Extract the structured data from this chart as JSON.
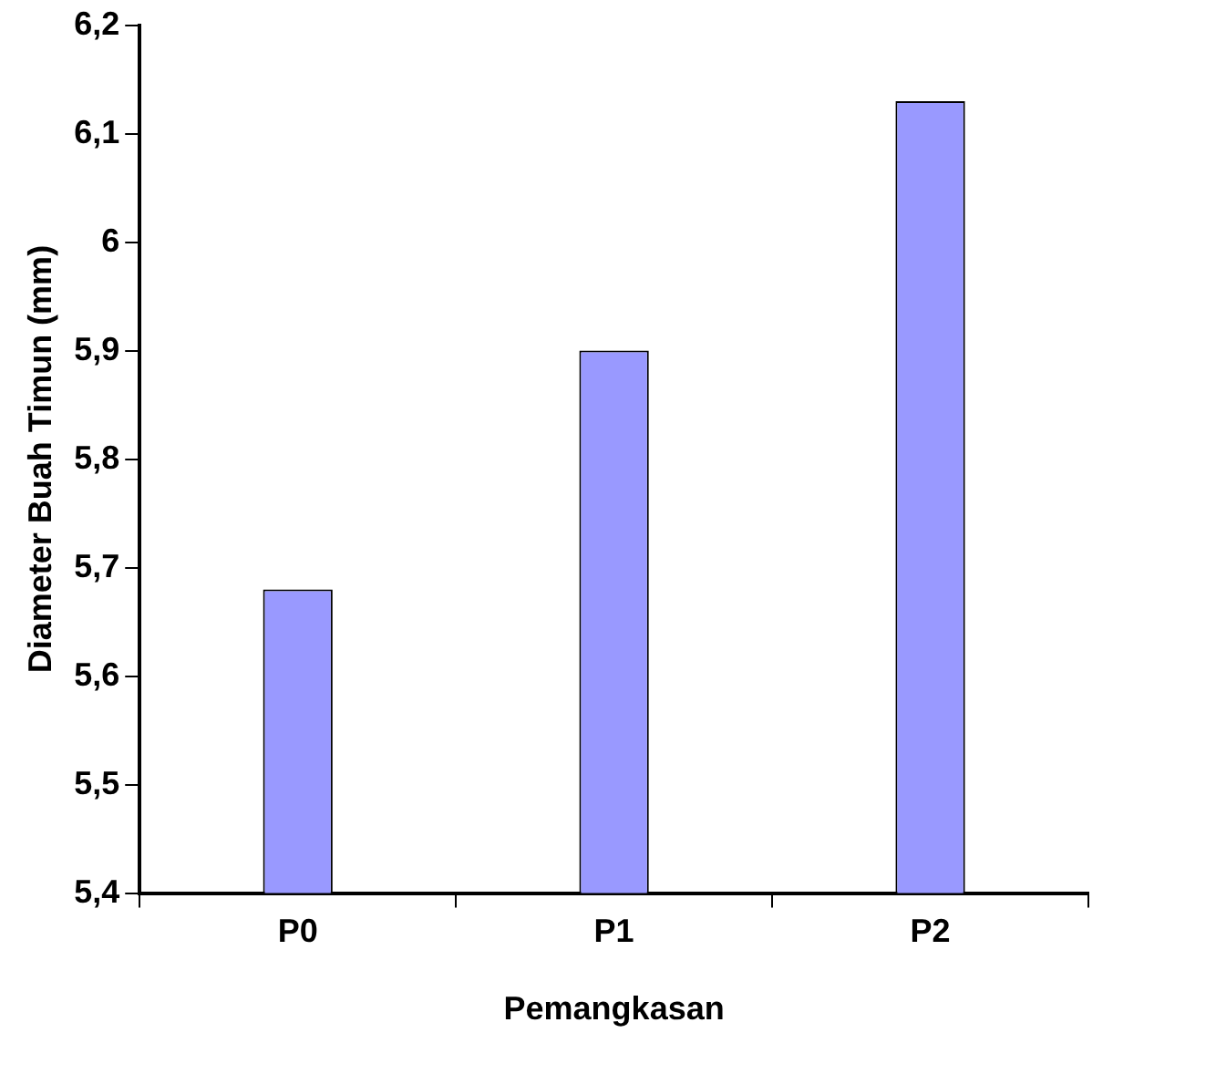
{
  "chart_data": {
    "type": "bar",
    "xlabel": "Pemangkasan",
    "ylabel": "Diameter Buah Timun (mm)",
    "categories": [
      "P0",
      "P1",
      "P2"
    ],
    "values": [
      5.68,
      5.9,
      6.13
    ],
    "color": "#9999ff",
    "ylim": [
      5.4,
      6.2
    ],
    "yticks": [
      {
        "value": 5.4,
        "label": "5,4"
      },
      {
        "value": 5.5,
        "label": "5,5"
      },
      {
        "value": 5.6,
        "label": "5,6"
      },
      {
        "value": 5.7,
        "label": "5,7"
      },
      {
        "value": 5.8,
        "label": "5,8"
      },
      {
        "value": 5.9,
        "label": "5,9"
      },
      {
        "value": 6,
        "label": "6"
      },
      {
        "value": 6.1,
        "label": "6,1"
      },
      {
        "value": 6.2,
        "label": "6,2"
      }
    ],
    "grid": false,
    "legend": false
  }
}
